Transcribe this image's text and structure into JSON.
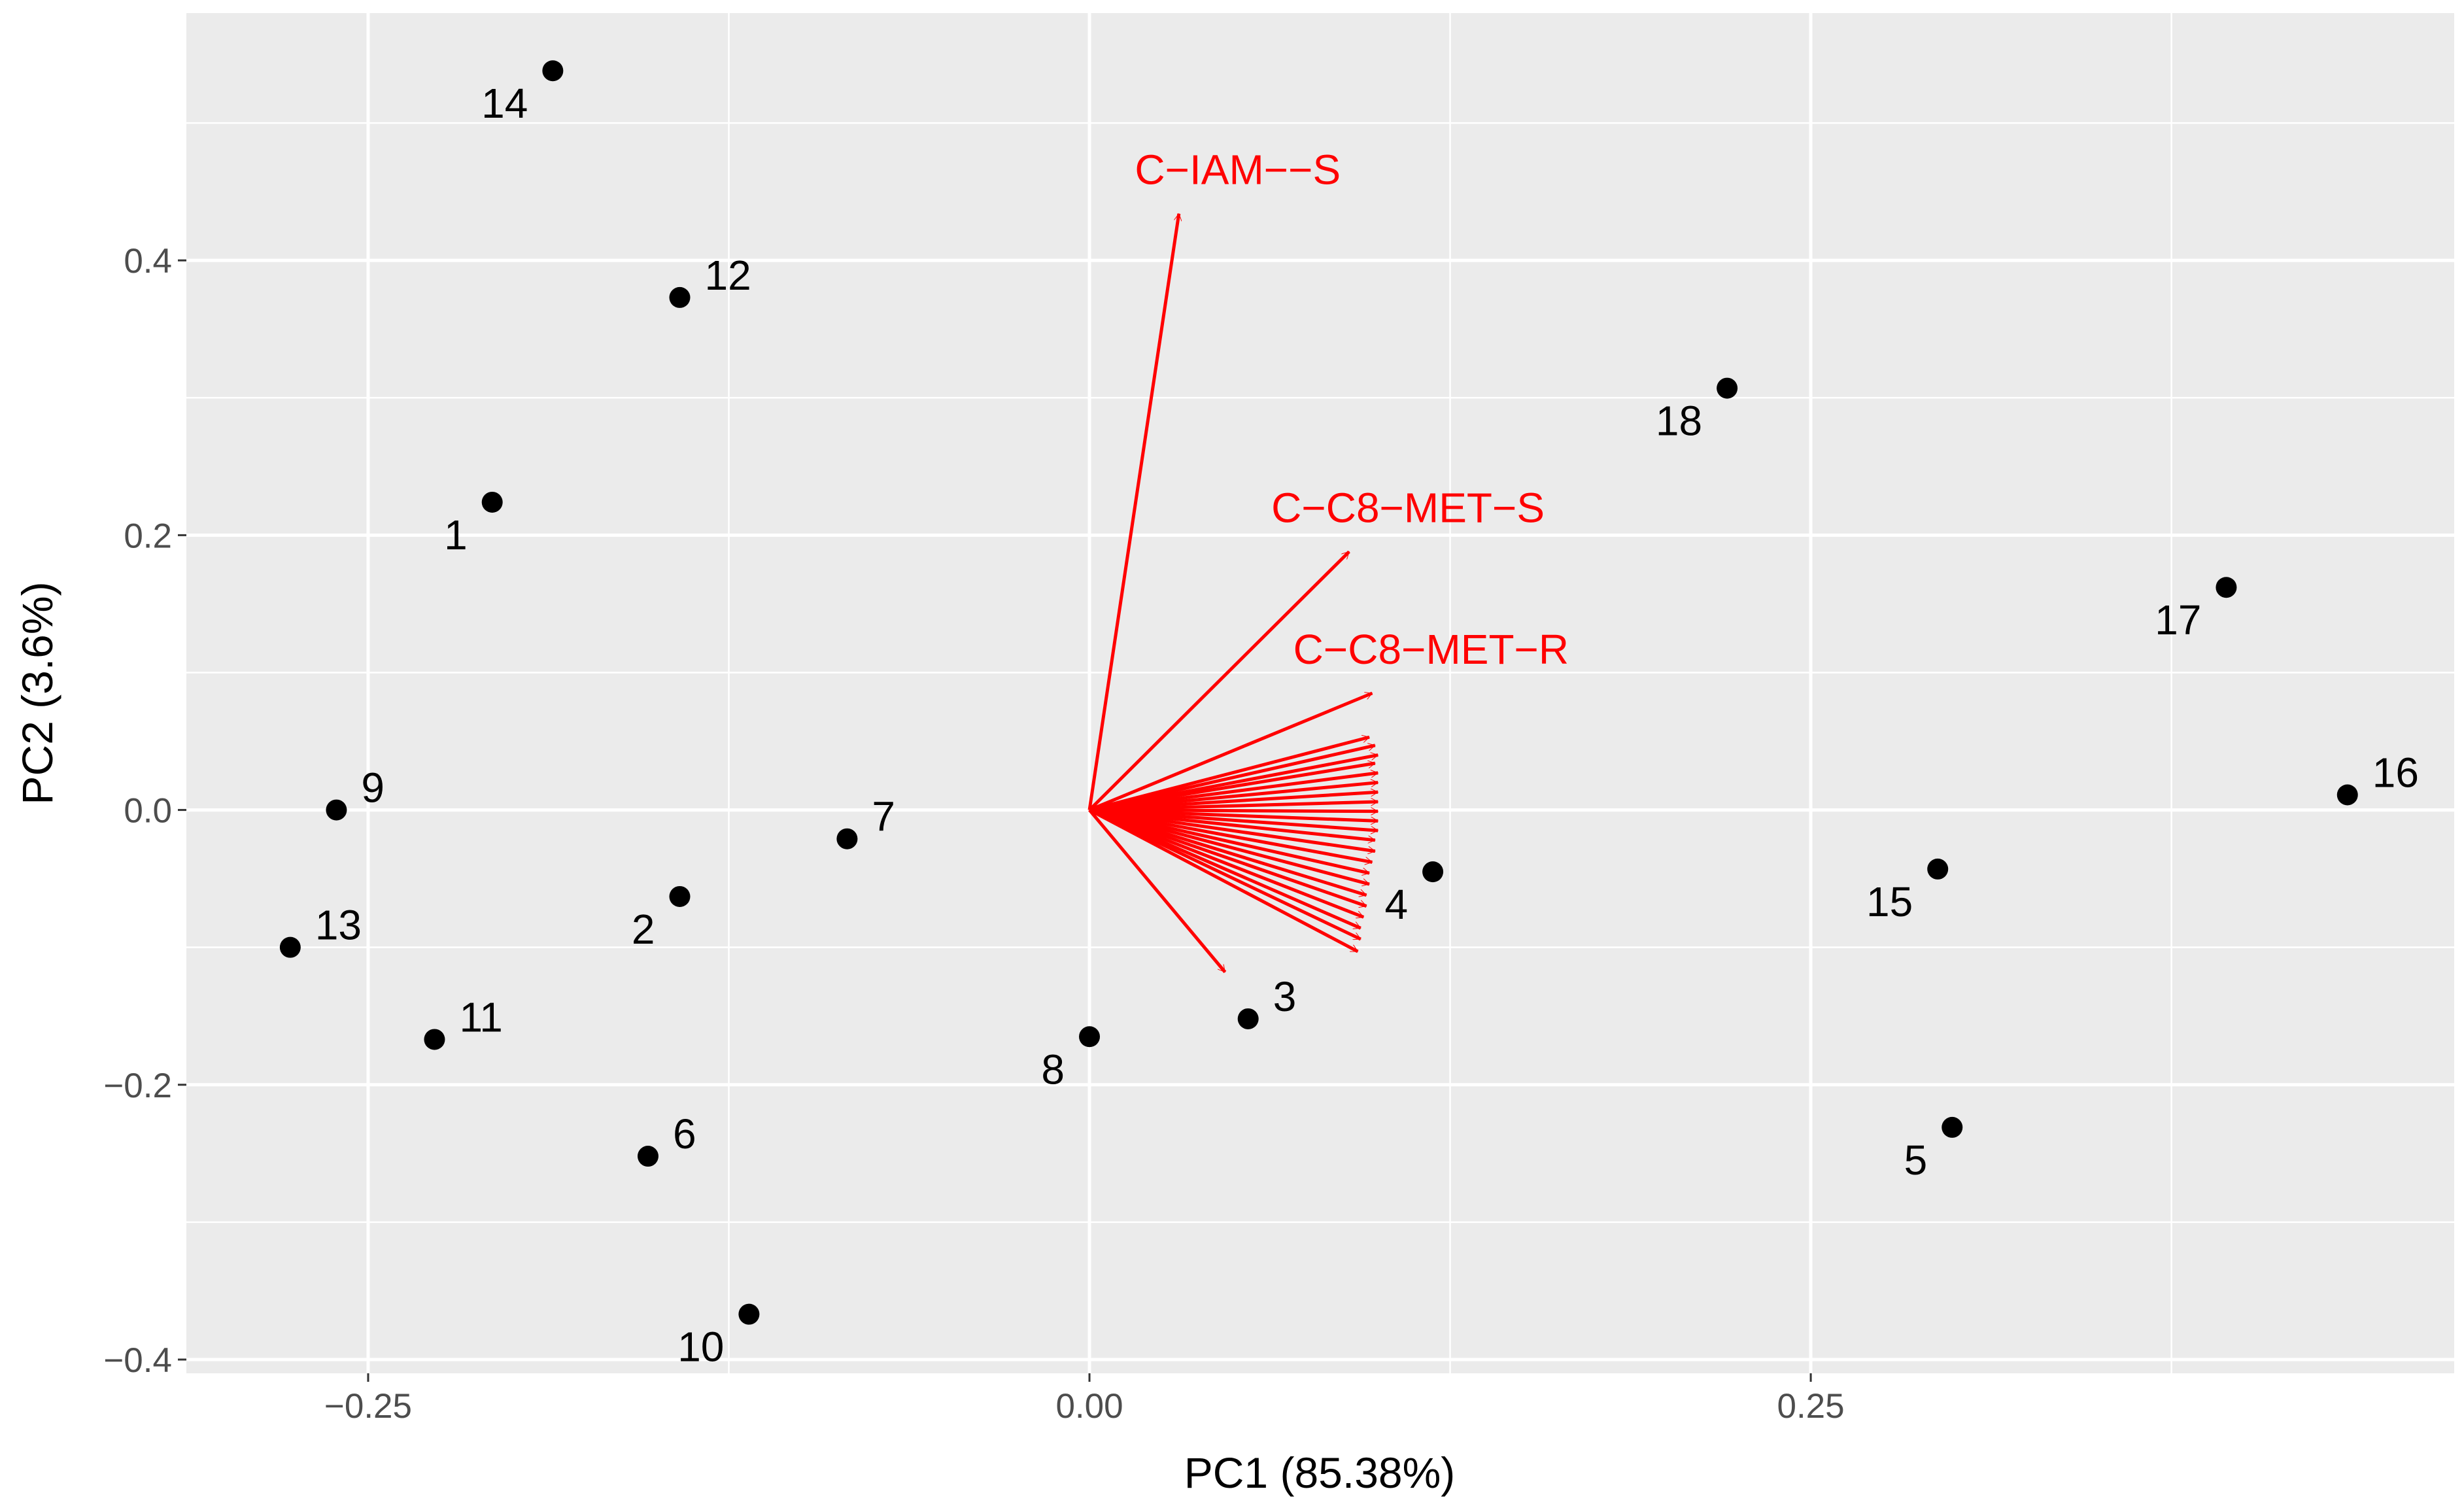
{
  "chart_data": {
    "type": "scatter",
    "title": "",
    "xlabel": "PC1 (85.38%)",
    "ylabel": "PC2 (3.6%)",
    "xlim": [
      -0.313,
      0.473
    ],
    "ylim": [
      -0.41,
      0.58
    ],
    "x_ticks": [
      {
        "value": -0.25,
        "label": "−0.25"
      },
      {
        "value": 0.0,
        "label": "0.00"
      },
      {
        "value": 0.25,
        "label": "0.25"
      }
    ],
    "y_ticks": [
      {
        "value": -0.4,
        "label": "−0.4"
      },
      {
        "value": -0.2,
        "label": "−0.2"
      },
      {
        "value": 0.0,
        "label": "0.0"
      },
      {
        "value": 0.2,
        "label": "0.2"
      },
      {
        "value": 0.4,
        "label": "0.4"
      }
    ],
    "grid": true,
    "colors": {
      "panel": "#ebebeb",
      "grid": "#ffffff",
      "point": "#000000",
      "arrow": "#ff0000",
      "tick_text": "#4d4d4d"
    },
    "points": [
      {
        "label": "1",
        "x": -0.207,
        "y": 0.224,
        "label_pos": "below-left"
      },
      {
        "label": "2",
        "x": -0.142,
        "y": -0.063,
        "label_pos": "below-left"
      },
      {
        "label": "3",
        "x": 0.055,
        "y": -0.152,
        "label_pos": "above-right"
      },
      {
        "label": "4",
        "x": 0.119,
        "y": -0.045,
        "label_pos": "below-left"
      },
      {
        "label": "5",
        "x": 0.299,
        "y": -0.231,
        "label_pos": "below-left"
      },
      {
        "label": "6",
        "x": -0.153,
        "y": -0.252,
        "label_pos": "above-right"
      },
      {
        "label": "7",
        "x": -0.084,
        "y": -0.021,
        "label_pos": "above-right"
      },
      {
        "label": "8",
        "x": 0.0,
        "y": -0.165,
        "label_pos": "below-left"
      },
      {
        "label": "9",
        "x": -0.261,
        "y": 0.0,
        "label_pos": "above-right"
      },
      {
        "label": "10",
        "x": -0.118,
        "y": -0.367,
        "label_pos": "below-left"
      },
      {
        "label": "11",
        "x": -0.227,
        "y": -0.167,
        "label_pos": "above-right"
      },
      {
        "label": "12",
        "x": -0.142,
        "y": 0.373,
        "label_pos": "above-right"
      },
      {
        "label": "13",
        "x": -0.277,
        "y": -0.1,
        "label_pos": "above-right"
      },
      {
        "label": "14",
        "x": -0.186,
        "y": 0.538,
        "label_pos": "below-left"
      },
      {
        "label": "15",
        "x": 0.294,
        "y": -0.043,
        "label_pos": "below-left"
      },
      {
        "label": "16",
        "x": 0.436,
        "y": 0.011,
        "label_pos": "above-right"
      },
      {
        "label": "17",
        "x": 0.394,
        "y": 0.162,
        "label_pos": "below-left"
      },
      {
        "label": "18",
        "x": 0.221,
        "y": 0.307,
        "label_pos": "below-left"
      }
    ],
    "loadings": [
      {
        "label": "C−IAM−−S",
        "x": 0.031,
        "y": 0.434
      },
      {
        "label": "C−C8−MET−S",
        "x": 0.09,
        "y": 0.188
      },
      {
        "label": "C−C8−MET−R",
        "x": 0.098,
        "y": 0.085
      },
      {
        "label": "",
        "x": 0.097,
        "y": 0.053
      },
      {
        "label": "",
        "x": 0.099,
        "y": 0.047
      },
      {
        "label": "",
        "x": 0.1,
        "y": 0.04
      },
      {
        "label": "",
        "x": 0.099,
        "y": 0.034
      },
      {
        "label": "",
        "x": 0.1,
        "y": 0.027
      },
      {
        "label": "",
        "x": 0.1,
        "y": 0.02
      },
      {
        "label": "",
        "x": 0.1,
        "y": 0.013
      },
      {
        "label": "",
        "x": 0.1,
        "y": 0.006
      },
      {
        "label": "",
        "x": 0.1,
        "y": -0.001
      },
      {
        "label": "",
        "x": 0.1,
        "y": -0.008
      },
      {
        "label": "",
        "x": 0.1,
        "y": -0.015
      },
      {
        "label": "",
        "x": 0.099,
        "y": -0.022
      },
      {
        "label": "",
        "x": 0.099,
        "y": -0.03
      },
      {
        "label": "",
        "x": 0.098,
        "y": -0.038
      },
      {
        "label": "",
        "x": 0.097,
        "y": -0.046
      },
      {
        "label": "",
        "x": 0.097,
        "y": -0.054
      },
      {
        "label": "",
        "x": 0.096,
        "y": -0.062
      },
      {
        "label": "",
        "x": 0.096,
        "y": -0.07
      },
      {
        "label": "",
        "x": 0.095,
        "y": -0.078
      },
      {
        "label": "",
        "x": 0.094,
        "y": -0.086
      },
      {
        "label": "",
        "x": 0.094,
        "y": -0.094
      },
      {
        "label": "",
        "x": 0.093,
        "y": -0.103
      },
      {
        "label": "",
        "x": 0.047,
        "y": -0.118
      }
    ]
  }
}
